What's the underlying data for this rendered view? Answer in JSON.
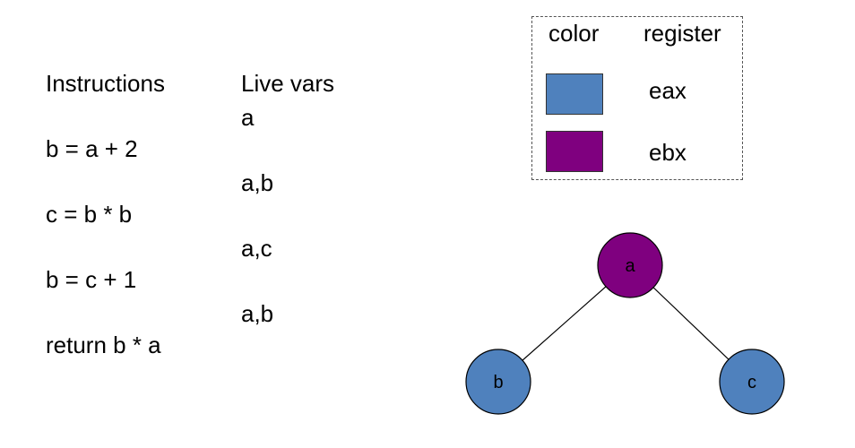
{
  "instructions_header": "Instructions",
  "live_vars_header": "Live vars",
  "instructions": [
    "b = a + 2",
    "c = b * b",
    "b = c + 1",
    "return b * a"
  ],
  "live_vars": [
    "a",
    "a,b",
    "a,c",
    "a,b"
  ],
  "legend": {
    "color_header": "color",
    "register_header": "register",
    "entries": [
      {
        "register": "eax",
        "color": "#4f81bd"
      },
      {
        "register": "ebx",
        "color": "#7f007f"
      }
    ]
  },
  "graph": {
    "nodes": [
      {
        "id": "a",
        "label": "a",
        "color": "#7f007f"
      },
      {
        "id": "b",
        "label": "b",
        "color": "#4f81bd"
      },
      {
        "id": "c",
        "label": "c",
        "color": "#4f81bd"
      }
    ],
    "edges": [
      [
        "a",
        "b"
      ],
      [
        "a",
        "c"
      ]
    ]
  }
}
